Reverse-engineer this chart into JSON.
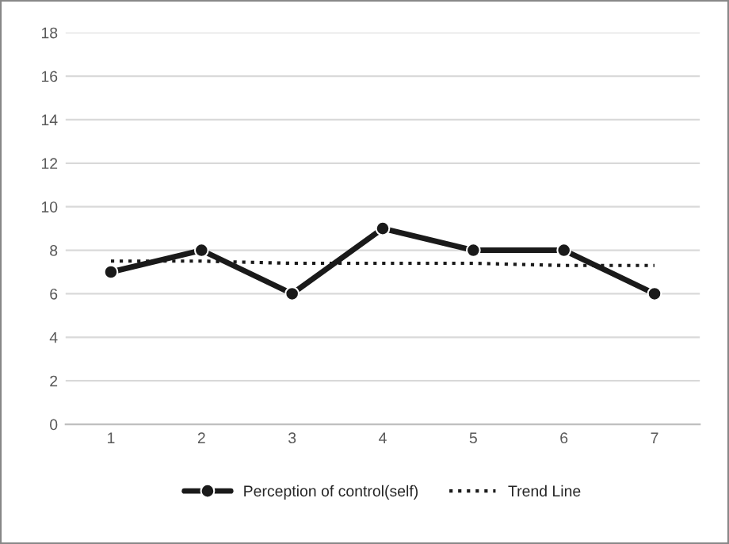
{
  "chart_data": {
    "type": "line",
    "categories": [
      "1",
      "2",
      "3",
      "4",
      "5",
      "6",
      "7"
    ],
    "series": [
      {
        "name": "Perception of control(self)",
        "color": "#1a1a1a",
        "values": [
          7,
          8,
          6,
          9,
          8,
          8,
          6
        ],
        "marker": "circle",
        "line_style": "solid"
      },
      {
        "name": "Trend Line",
        "color": "#1a1a1a",
        "values": [
          7.5,
          7.5,
          7.4,
          7.4,
          7.4,
          7.3,
          7.3
        ],
        "marker": "none",
        "line_style": "dotted"
      }
    ],
    "ylim": [
      0,
      18
    ],
    "yticks": [
      0,
      2,
      4,
      6,
      8,
      10,
      12,
      14,
      16,
      18
    ],
    "grid": "y",
    "legend": "bottom"
  }
}
